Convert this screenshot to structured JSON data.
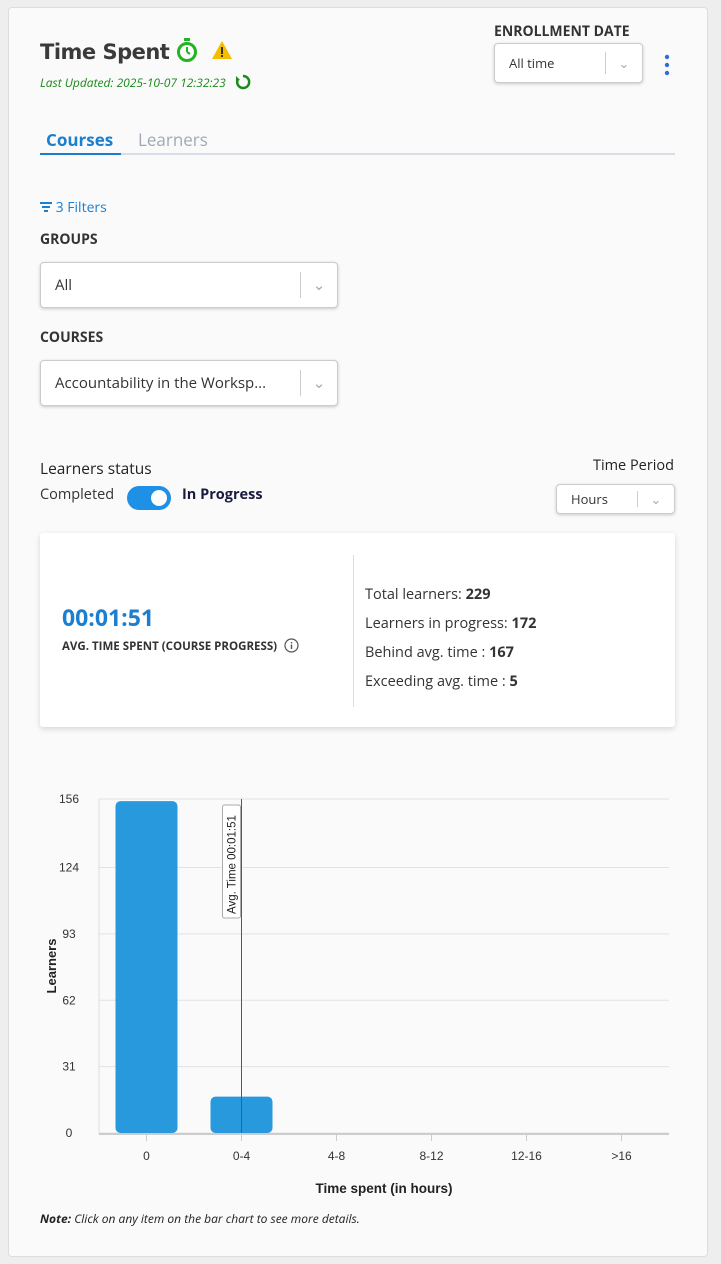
{
  "header": {
    "title": "Time Spent",
    "timer_icon": "stopwatch-icon",
    "warning_icon": "warning-icon",
    "last_updated": "Last Updated: 2025-10-07 12:32:23",
    "refresh_icon": "refresh-icon"
  },
  "enrollment": {
    "label": "ENROLLMENT DATE",
    "value": "All time"
  },
  "tabs": [
    {
      "label": "Courses",
      "active": true
    },
    {
      "label": "Learners",
      "active": false
    }
  ],
  "filters": {
    "label": "3 Filters",
    "groups_label": "GROUPS",
    "groups_value": "All",
    "courses_label": "COURSES",
    "courses_value": "Accountability in the Worksp..."
  },
  "status": {
    "label": "Learners status",
    "completed": "Completed",
    "in_progress": "In Progress",
    "toggle_on": true,
    "time_period_label": "Time Period",
    "time_period_value": "Hours"
  },
  "summary": {
    "avg_time": "00:01:51",
    "avg_label": "AVG. TIME SPENT (COURSE PROGRESS)",
    "total_label": "Total learners:",
    "total": "229",
    "in_progress_label": "Learners in progress:",
    "in_progress": "172",
    "behind_label": "Behind avg. time :",
    "behind": "167",
    "exceeding_label": "Exceeding avg. time :",
    "exceeding": "5"
  },
  "chart_data": {
    "type": "bar",
    "categories": [
      "0",
      "0-4",
      "4-8",
      "8-12",
      "12-16",
      ">16"
    ],
    "values": [
      155,
      17,
      0,
      0,
      0,
      0
    ],
    "xlabel": "Time spent (in hours)",
    "ylabel": "Learners",
    "yticks": [
      0,
      31,
      62,
      93,
      124,
      156
    ],
    "ylim": [
      0,
      156
    ],
    "grid": true,
    "color": "#2899dc",
    "annotation": {
      "label": "Avg. Time 00:01:51",
      "category": "0-4"
    }
  },
  "note": {
    "prefix": "Note:",
    "text": " Click on any item on the bar chart to see more details."
  }
}
